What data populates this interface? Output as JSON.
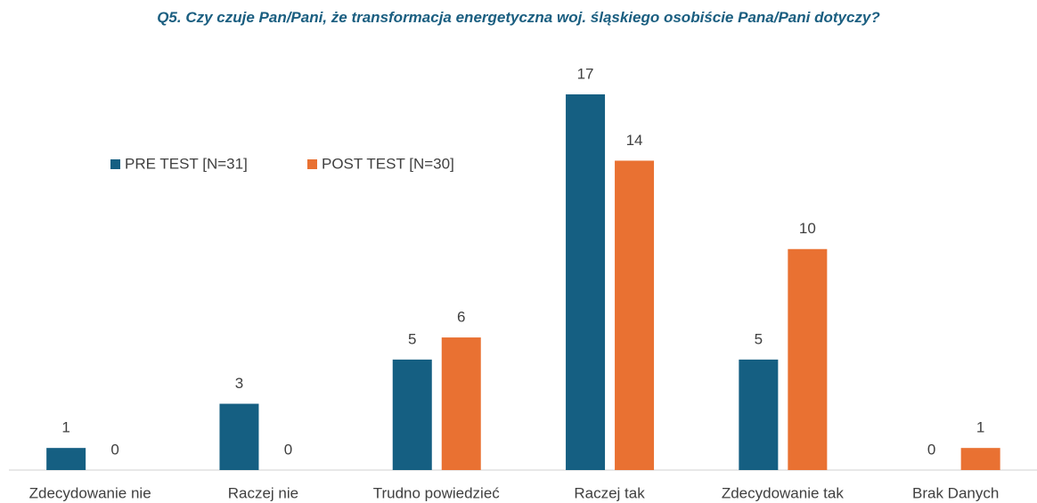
{
  "chart_data": {
    "type": "bar",
    "title": "Q5.  Czy czuje Pan/Pani, że transformacja energetyczna woj. śląskiego osobiście Pana/Pani dotyczy?",
    "categories": [
      "Zdecydowanie nie",
      "Raczej nie",
      "Trudno powiedzieć",
      "Raczej tak",
      "Zdecydowanie tak",
      "Brak Danych"
    ],
    "series": [
      {
        "name": "PRE TEST [N=31]",
        "color": "#155f82",
        "values": [
          1,
          3,
          5,
          17,
          5,
          0
        ]
      },
      {
        "name": "POST TEST [N=30]",
        "color": "#e97132",
        "values": [
          0,
          0,
          6,
          14,
          10,
          1
        ]
      }
    ],
    "legend": "upper left"
  }
}
